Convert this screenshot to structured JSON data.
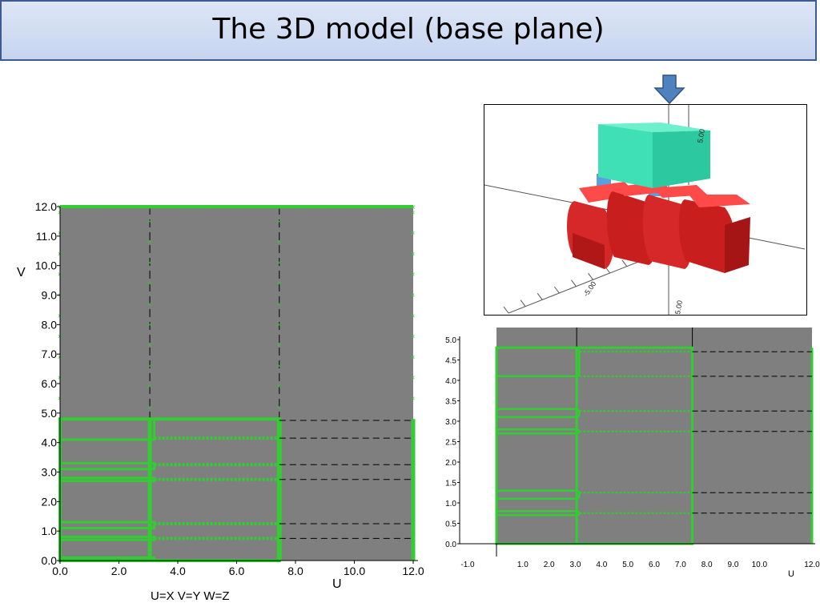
{
  "slide": {
    "title": "The 3D model (base plane)",
    "caption": "U=X V=Y W=Z"
  },
  "colors": {
    "plot_background": "#7f7f7f",
    "mesh_green": "#33cc33",
    "title_fill": "#d3ddf2",
    "title_border": "#3c5a93",
    "block_teal": "#3fe0b6",
    "blocks_red": "#e03030",
    "arrow_blue": "#4f81bd"
  },
  "icons": {
    "arrow": "down-arrow-icon"
  },
  "left_plot": {
    "xlabel": "U",
    "ylabel": "V",
    "x_ticks": [
      "0.0",
      "2.0",
      "4.0",
      "6.0",
      "8.0",
      "10.0",
      "12.0"
    ],
    "y_ticks": [
      "0.0",
      "1.0",
      "2.0",
      "3.0",
      "4.0",
      "5.0",
      "6.0",
      "7.0",
      "8.0",
      "9.0",
      "10.0",
      "11.0",
      "12.0"
    ]
  },
  "right_plot": {
    "xlabel": "U",
    "x_ticks": [
      "-1.0",
      "1.0",
      "2.0",
      "3.0",
      "4.0",
      "5.0",
      "6.0",
      "7.0",
      "8.0",
      "9.0",
      "10.0",
      "12.0"
    ],
    "y_ticks": [
      "0.0",
      "0.5",
      "1.0",
      "1.5",
      "2.0",
      "2.5",
      "3.0",
      "3.5",
      "4.0",
      "4.5",
      "5.0"
    ]
  },
  "model_view": {
    "axis_labels": [
      "5.00",
      "-5.00",
      "5.00"
    ]
  }
}
